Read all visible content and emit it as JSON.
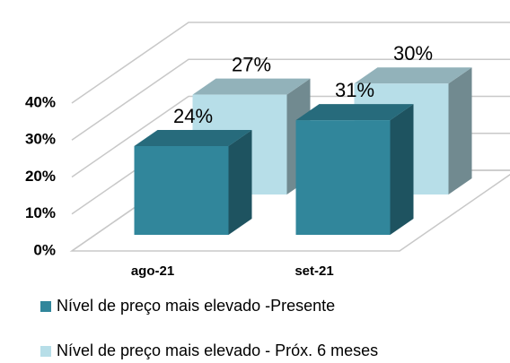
{
  "chart_data": {
    "type": "bar3d",
    "categories": [
      "ago-21",
      "set-21"
    ],
    "series": [
      {
        "name": "Nível de preço mais elevado -Presente",
        "color": "#31869b",
        "values": [
          24,
          31
        ],
        "value_labels": [
          "24%",
          "31%"
        ]
      },
      {
        "name": "Nível de preço mais elevado - Próx. 6 meses",
        "color": "#b7dee8",
        "values": [
          27,
          30
        ],
        "value_labels": [
          "27%",
          "30%"
        ]
      }
    ],
    "ylim": [
      0,
      40
    ],
    "yticks": [
      {
        "value": 0,
        "label": "0%"
      },
      {
        "value": 10,
        "label": "10%"
      },
      {
        "value": 20,
        "label": "20%"
      },
      {
        "value": 30,
        "label": "30%"
      },
      {
        "value": 40,
        "label": "40%"
      }
    ],
    "grid": true
  }
}
